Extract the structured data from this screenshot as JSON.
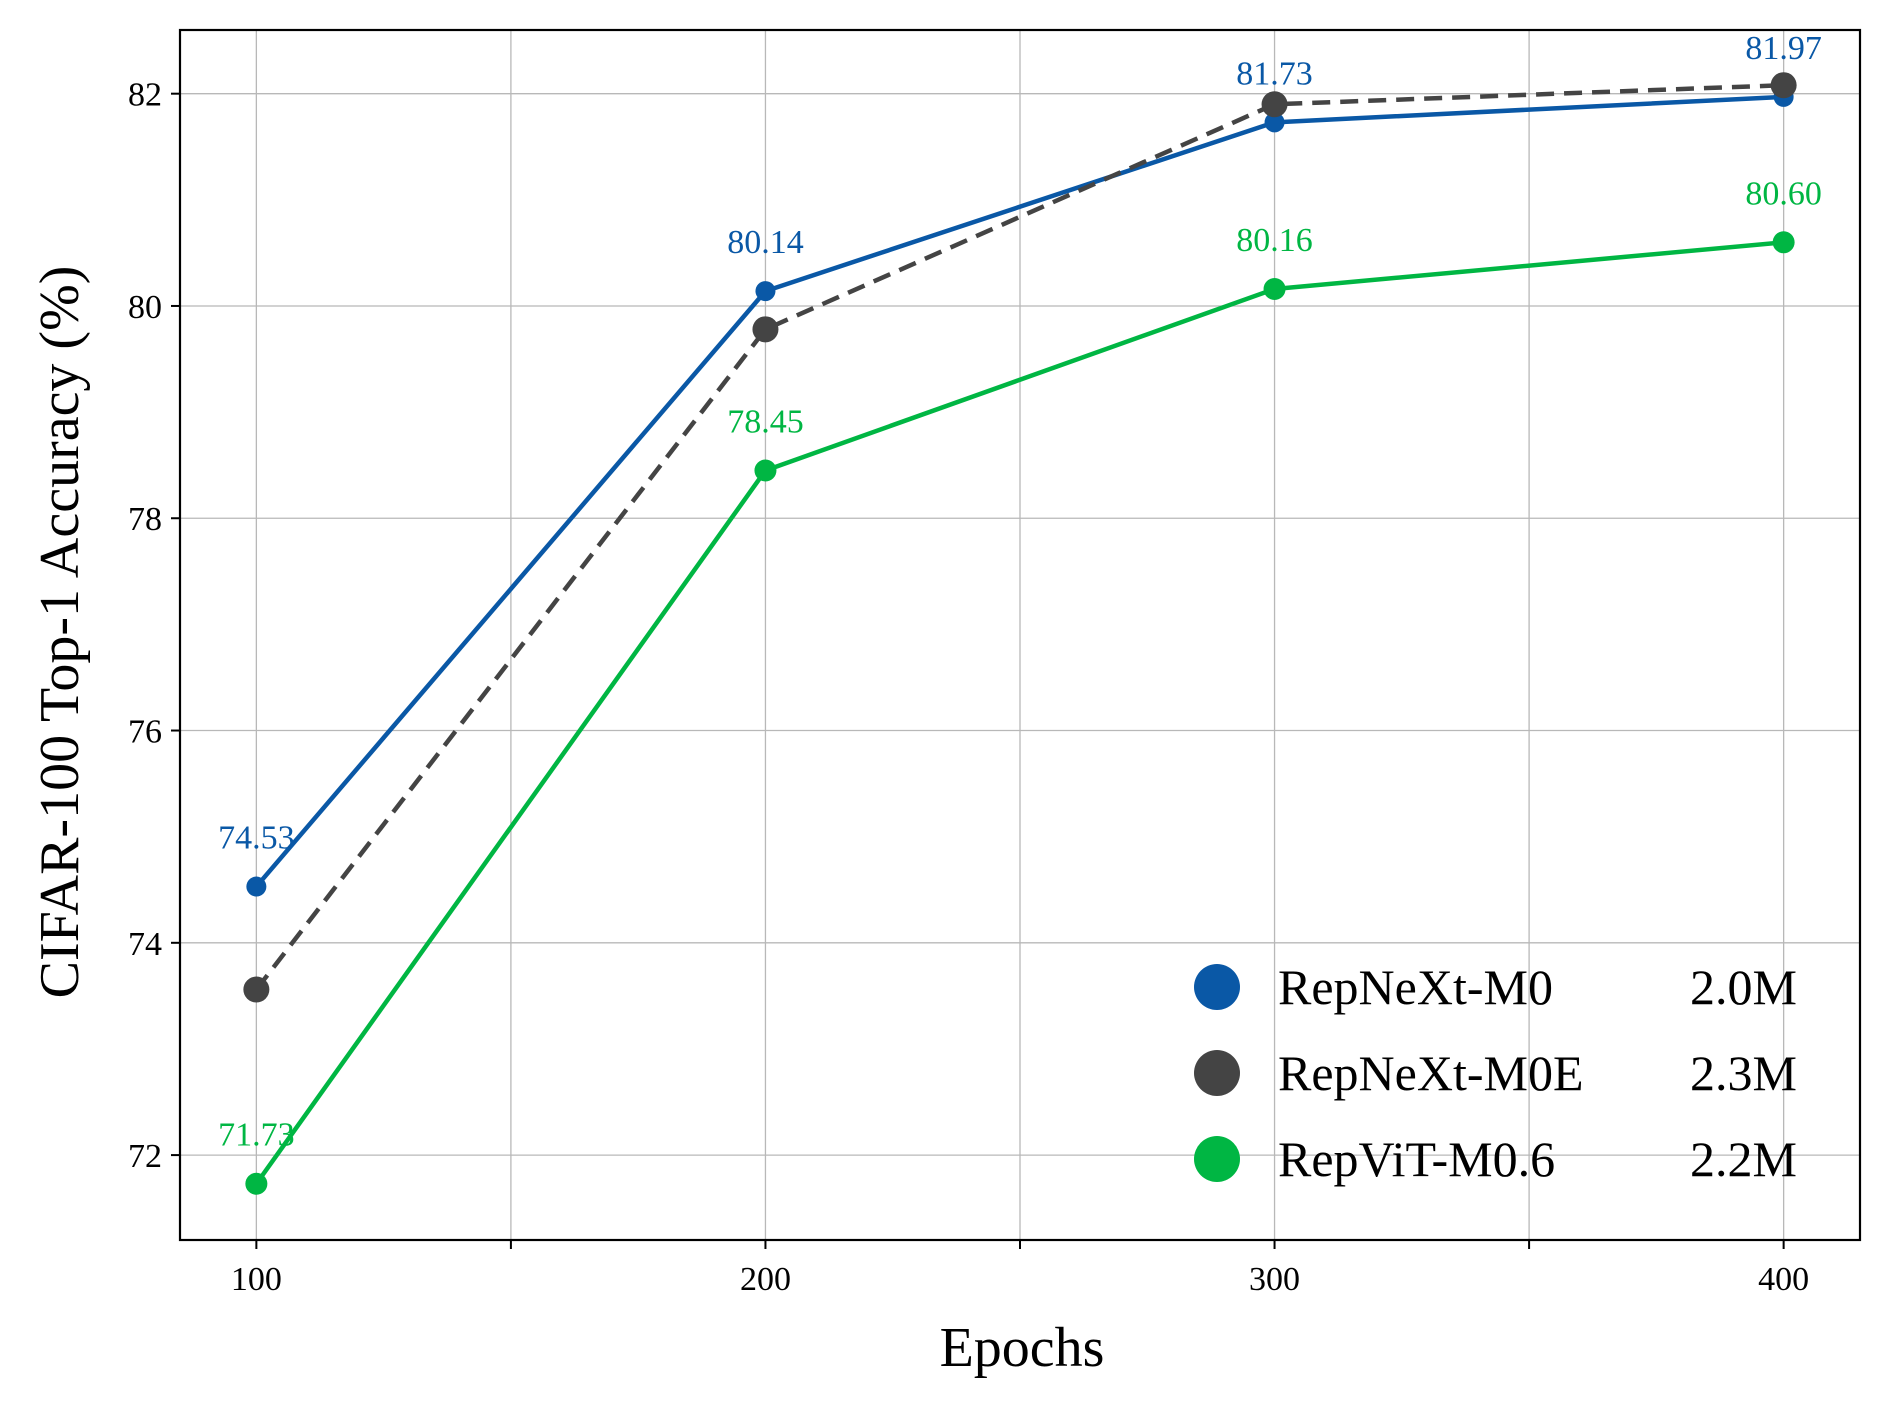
{
  "chart_data": {
    "type": "line",
    "xlabel": "Epochs",
    "ylabel": "CIFAR-100 Top-1 Accuracy (%)",
    "x": [
      100,
      200,
      300,
      400
    ],
    "xlim": [
      85,
      415
    ],
    "ylim": [
      71.2,
      82.6
    ],
    "x_ticks": [
      100,
      200,
      300,
      400
    ],
    "x_tick_labels": [
      "100",
      "200",
      "300",
      "400"
    ],
    "x_grid": [
      100,
      150,
      200,
      250,
      300,
      350,
      400
    ],
    "y_ticks": [
      72,
      74,
      76,
      78,
      80,
      82
    ],
    "y_tick_labels": [
      "72",
      "74",
      "76",
      "78",
      "80",
      "82"
    ],
    "grid": true,
    "legend_position": "bottom-right",
    "series": [
      {
        "name": "RepNeXt-M0",
        "params": "2.0M",
        "values": [
          74.53,
          80.14,
          81.73,
          81.97
        ],
        "labels": [
          "74.53",
          "80.14",
          "81.73",
          "81.97"
        ],
        "color": "#0a58a6",
        "dash": "solid"
      },
      {
        "name": "RepNeXt-M0E",
        "params": "2.3M",
        "values": [
          73.56,
          79.78,
          81.9,
          82.08
        ],
        "labels": [
          "",
          "",
          "",
          ""
        ],
        "color": "#444444",
        "dash": "dashed"
      },
      {
        "name": "RepViT-M0.6",
        "params": "2.2M",
        "values": [
          71.73,
          78.45,
          80.16,
          80.6
        ],
        "labels": [
          "71.73",
          "78.45",
          "80.16",
          "80.60"
        ],
        "color": "#00b643",
        "dash": "solid"
      }
    ]
  }
}
